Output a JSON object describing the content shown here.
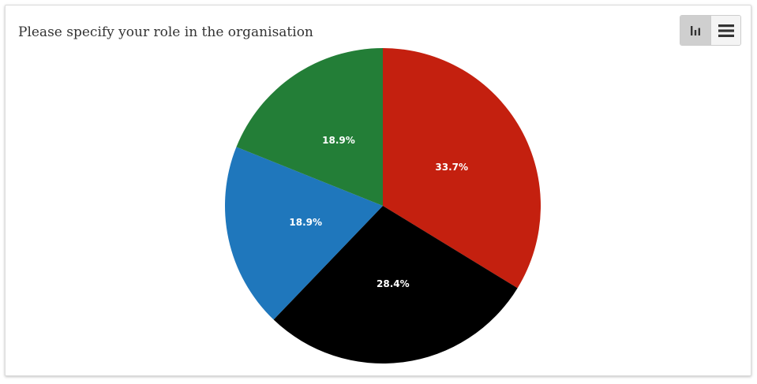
{
  "title": "Please specify your role in the organisation",
  "toolbar": {
    "chart_view_icon": "bar-chart-icon",
    "table_view_icon": "list-icon"
  },
  "colors": {
    "red": "#c4200f",
    "black": "#000000",
    "blue": "#1f77bc",
    "green": "#237e37"
  },
  "chart_data": {
    "type": "pie",
    "title": "Please specify your role in the organisation",
    "slices": [
      {
        "value": 33.7,
        "label": "33.7%",
        "color": "#c4200f"
      },
      {
        "value": 28.4,
        "label": "28.4%",
        "color": "#000000"
      },
      {
        "value": 18.9,
        "label": "18.9%",
        "color": "#1f77bc"
      },
      {
        "value": 18.9,
        "label": "18.9%",
        "color": "#237e37"
      }
    ]
  }
}
